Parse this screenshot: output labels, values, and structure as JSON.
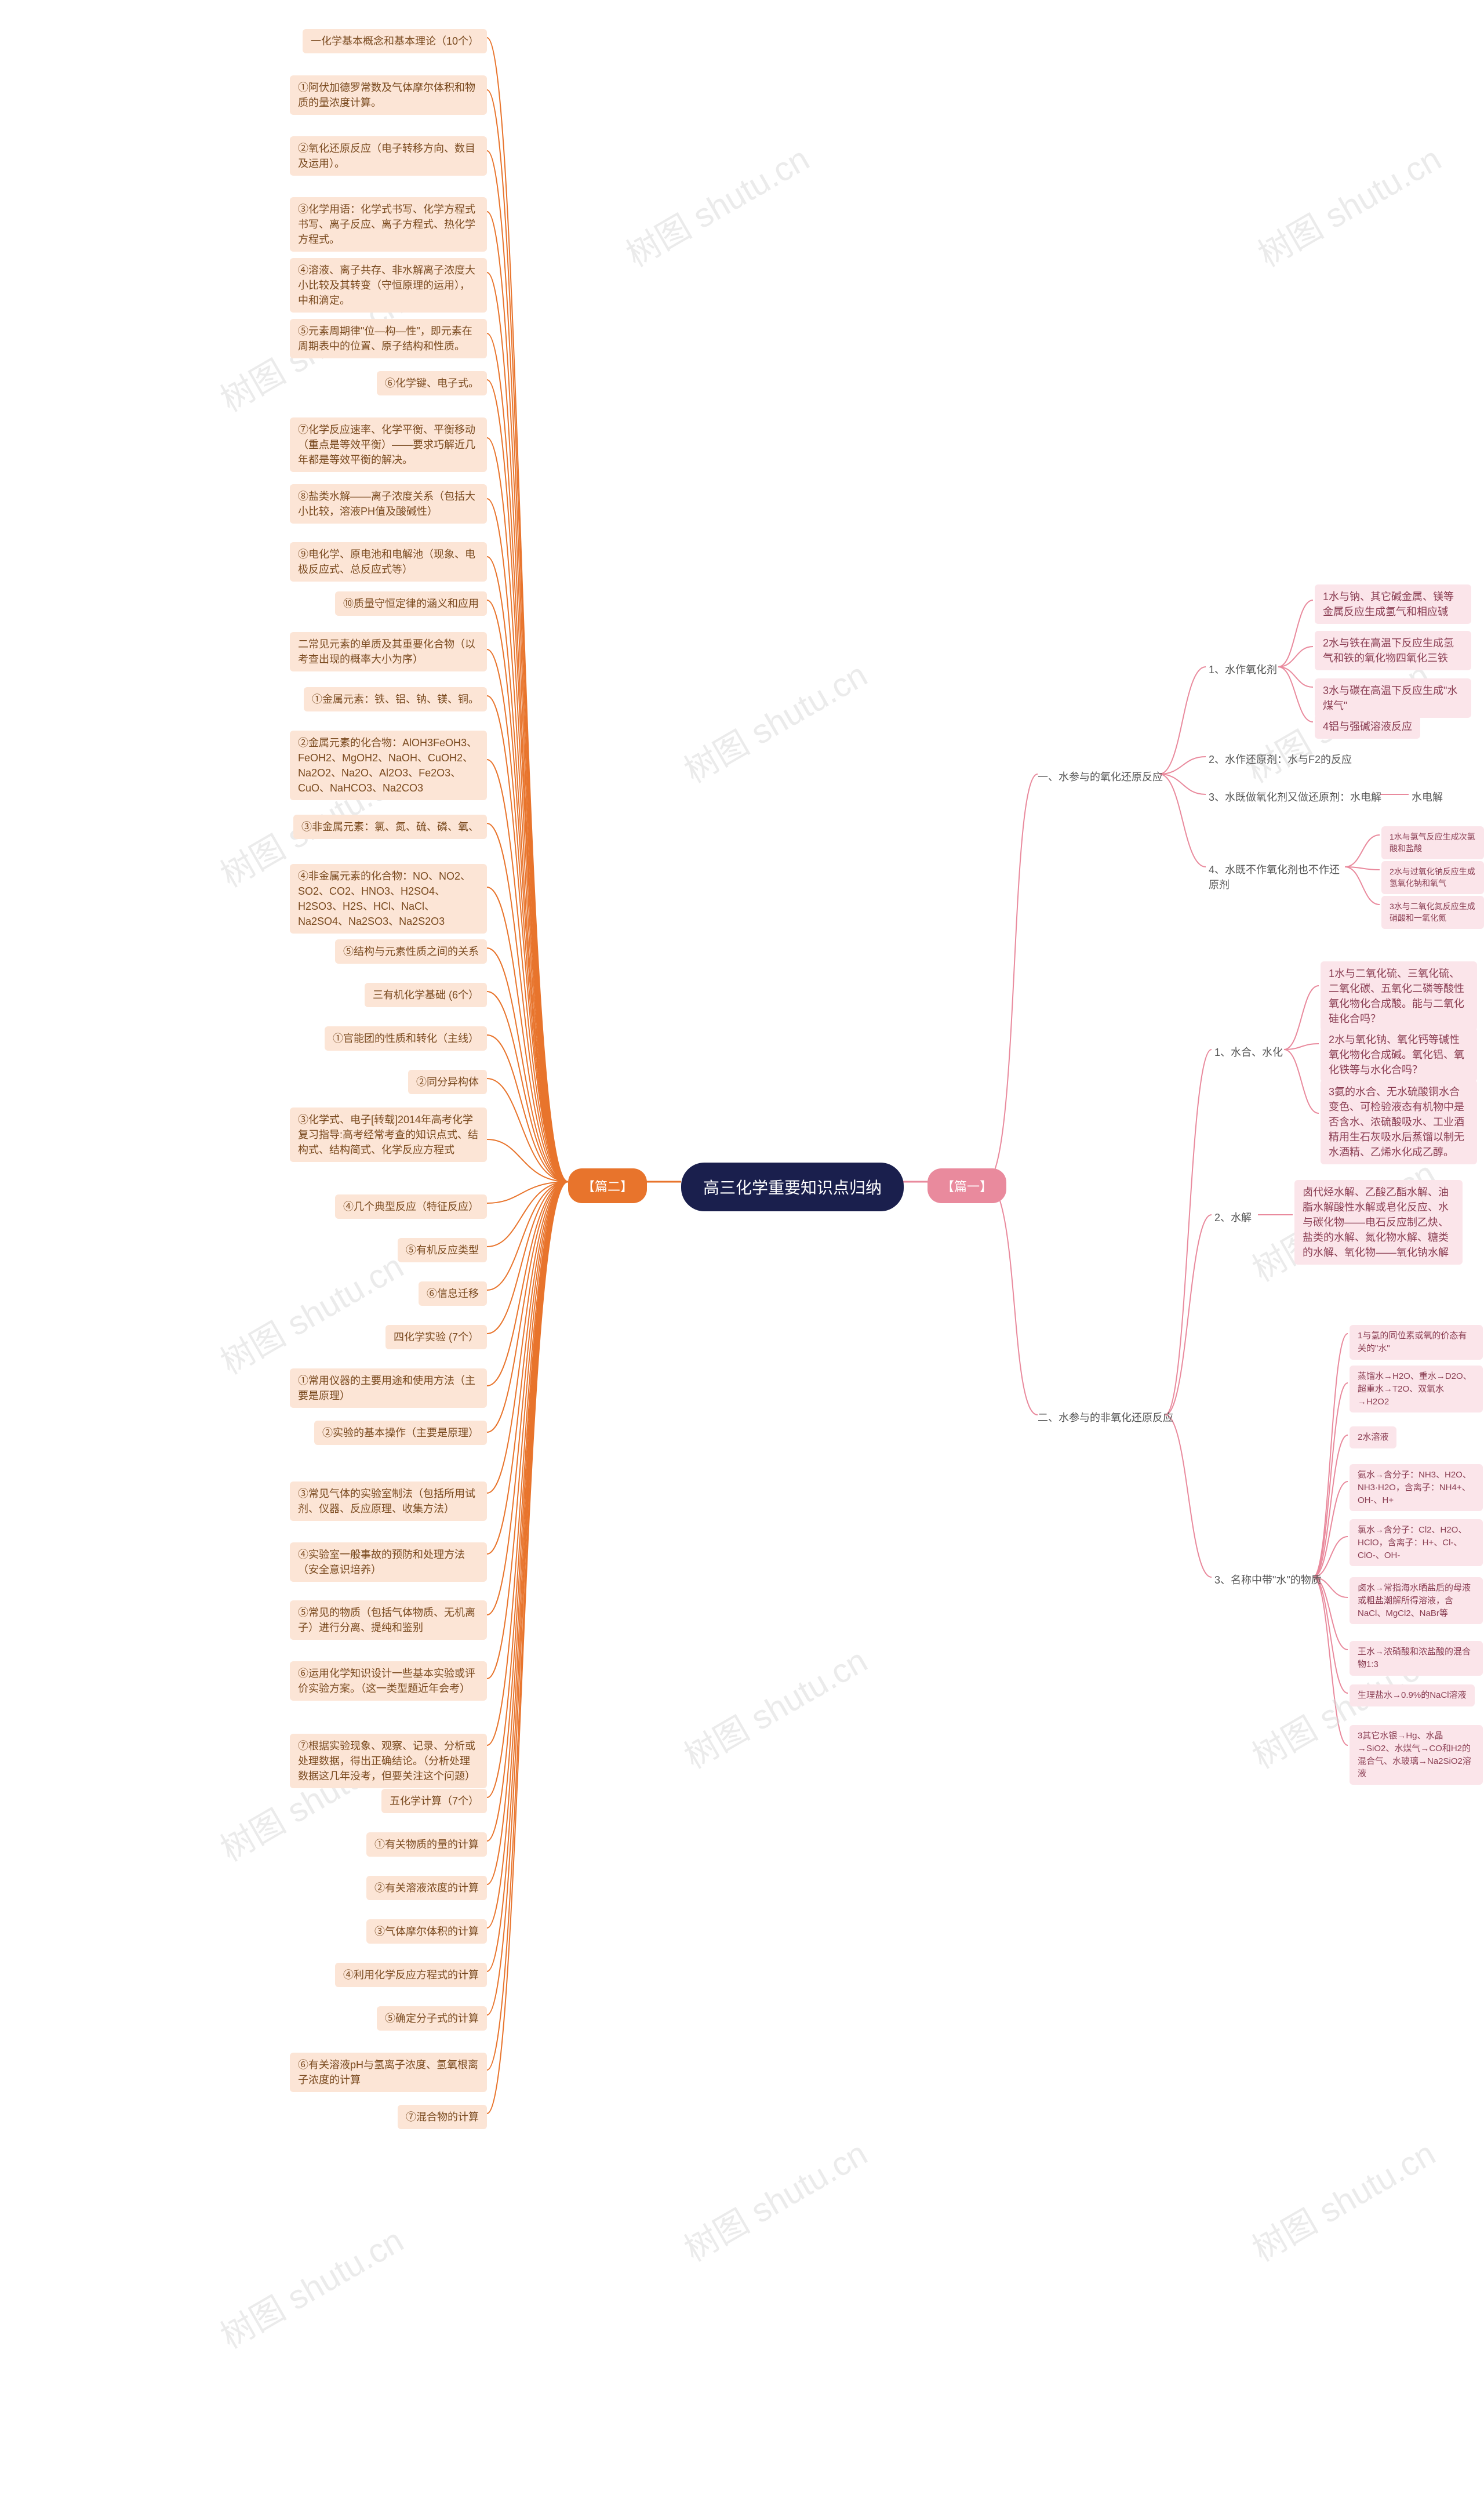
{
  "center": {
    "label": "高三化学重要知识点归纳"
  },
  "left_root": {
    "label": "【篇二】"
  },
  "right_root": {
    "label": "【篇一】"
  },
  "watermarks": {
    "text": "树图 shutu.cn"
  },
  "colors": {
    "center_bg": "#1a1f4d",
    "left_root_bg": "#e8742c",
    "right_root_bg": "#e98a9d",
    "left_node_bg": "#fce5d6",
    "right_node_bg": "#fbe5ea",
    "left_line": "#e8742c",
    "right_line": "#e98a9d",
    "watermark": "#d8d8d8"
  },
  "left_nodes": [
    "一化学基本概念和基本理论（10个）",
    "①阿伏加德罗常数及气体摩尔体积和物质的量浓度计算。",
    "②氧化还原反应（电子转移方向、数目及运用）。",
    "③化学用语：化学式书写、化学方程式书写、离子反应、离子方程式、热化学方程式。",
    "④溶液、离子共存、非水解离子浓度大小比较及其转变（守恒原理的运用），中和滴定。",
    "⑤元素周期律\"位—构—性\"，即元素在周期表中的位置、原子结构和性质。",
    "⑥化学键、电子式。",
    "⑦化学反应速率、化学平衡、平衡移动（重点是等效平衡）——要求巧解近几年都是等效平衡的解决。",
    "⑧盐类水解——离子浓度关系（包括大小比较，溶液PH值及酸碱性）",
    "⑨电化学、原电池和电解池（现象、电极反应式、总反应式等）",
    "⑩质量守恒定律的涵义和应用",
    "二常见元素的单质及其重要化合物（以考查出现的概率大小为序）",
    "①金属元素：铁、铝、钠、镁、铜。",
    "②金属元素的化合物：AlOH3FeOH3、FeOH2、MgOH2、NaOH、CuOH2、Na2O2、Na2O、Al2O3、Fe2O3、CuO、NaHCO3、Na2CO3",
    "③非金属元素：氯、氮、硫、磷、氧、",
    "④非金属元素的化合物：NO、NO2、SO2、CO2、HNO3、H2SO4、H2SO3、H2S、HCl、NaCl、Na2SO4、Na2SO3、Na2S2O3",
    "⑤结构与元素性质之间的关系",
    "三有机化学基础 (6个）",
    "①官能团的性质和转化（主线）",
    "②同分异构体",
    "③化学式、电子[转载]2014年高考化学复习指导:高考经常考查的知识点式、结构式、结构简式、化学反应方程式",
    "④几个典型反应（特征反应）",
    "⑤有机反应类型",
    "⑥信息迁移",
    "四化学实验 (7个）",
    "①常用仪器的主要用途和使用方法（主要是原理）",
    "②实验的基本操作（主要是原理）",
    "③常见气体的实验室制法（包括所用试剂、仪器、反应原理、收集方法）",
    "④实验室一般事故的预防和处理方法（安全意识培养）",
    "⑤常见的物质（包括气体物质、无机离子）进行分离、提纯和鉴别",
    "⑥运用化学知识设计一些基本实验或评价实验方案。（这一类型题近年会考）",
    "⑦根据实验现象、观察、记录、分析或处理数据，得出正确结论。（分析处理数据这几年没考，但要关注这个问题）",
    "五化学计算（7个）",
    "①有关物质的量的计算",
    "②有关溶液浓度的计算",
    "③气体摩尔体积的计算",
    "④利用化学反应方程式的计算",
    "⑤确定分子式的计算",
    "⑥有关溶液pH与氢离子浓度、氢氧根离子浓度的计算",
    "⑦混合物的计算"
  ],
  "right": {
    "branch1": {
      "label": "一、水参与的氧化还原反应",
      "children": {
        "c1": {
          "label": "1、水作氧化剂",
          "leaves": [
            "1水与钠、其它碱金属、镁等金属反应生成氢气和相应碱",
            "2水与铁在高温下反应生成氢气和铁的氧化物四氧化三铁",
            "3水与碳在高温下反应生成\"水煤气\"",
            "4铝与强碱溶液反应"
          ]
        },
        "c2": {
          "label": "2、水作还原剂：水与F2的反应"
        },
        "c3": {
          "label": "3、水既做氧化剂又做还原剂：水电解",
          "tail": "水电解"
        },
        "c4": {
          "label": "4、水既不作氧化剂也不作还原剂",
          "leaves": [
            "1水与氯气反应生成次氯酸和盐酸",
            "2水与过氧化钠反应生成氢氧化钠和氧气",
            "3水与二氧化氮反应生成硝酸和一氧化氮"
          ]
        }
      }
    },
    "branch2": {
      "label": "二、水参与的非氧化还原反应",
      "children": {
        "c1": {
          "label": "1、水合、水化",
          "leaves": [
            "1水与二氧化硫、三氧化硫、二氧化碳、五氧化二磷等酸性氧化物化合成酸。能与二氧化硅化合吗？",
            "2水与氧化钠、氧化钙等碱性氧化物化合成碱。氧化铝、氧化铁等与水化合吗？",
            "3氨的水合、无水硫酸铜水合变色、可检验液态有机物中是否含水、浓硫酸吸水、工业酒精用生石灰吸水后蒸馏以制无水酒精、乙烯水化成乙醇。"
          ]
        },
        "c2": {
          "label": "2、水解",
          "leaves": [
            "卤代烃水解、乙酸乙酯水解、油脂水解酸性水解或皂化反应、水与碳化物——电石反应制乙炔、盐类的水解、氮化物水解、糖类的水解、氧化物——氧化钠水解"
          ]
        },
        "c3": {
          "label": "3、名称中带\"水\"的物质",
          "leaves": [
            "1与氢的同位素或氧的价态有关的\"水\"",
            "蒸馏水→H2O、重水→D2O、超重水→T2O、双氧水→H2O2",
            "2水溶液",
            "氨水→含分子：NH3、H2O、NH3·H2O，含离子：NH4+、OH-、H+",
            "氯水→含分子：Cl2、H2O、HClO，含离子：H+、Cl-、ClO-、OH-",
            "卤水→常指海水晒盐后的母液或粗盐潮解所得溶液，含NaCl、MgCl2、NaBr等",
            "王水→浓硝酸和浓盐酸的混合物1:3",
            "生理盐水→0.9%的NaCl溶液",
            "3其它水银→Hg、水晶→SiO2、水煤气→CO和H2的混合气、水玻璃→Na2SiO2溶液"
          ]
        }
      }
    }
  }
}
